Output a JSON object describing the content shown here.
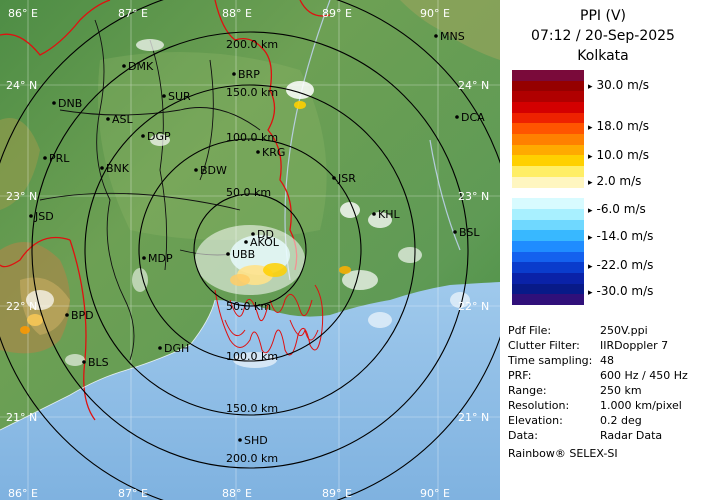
{
  "header": {
    "product": "PPI (V)",
    "datetime": "07:12 / 20-Sep-2025",
    "station": "Kolkata"
  },
  "legend": {
    "ticks": [
      "30.0 m/s",
      "18.0 m/s",
      "10.0 m/s",
      "2.0 m/s",
      "-6.0 m/s",
      "-14.0 m/s",
      "-22.0 m/s",
      "-30.0 m/s"
    ],
    "colors": [
      "#7a0a3a",
      "#950000",
      "#b00000",
      "#d40000",
      "#ee2200",
      "#ff5500",
      "#ff8000",
      "#ffaa00",
      "#ffd000",
      "#ffee66",
      "#fff6c0",
      "#ffffff",
      "#d8fbff",
      "#a8f0ff",
      "#6fd8ff",
      "#38b8ff",
      "#1f8cff",
      "#1461ee",
      "#0a3ccc",
      "#0a22a8",
      "#081a88",
      "#30107a"
    ]
  },
  "info": [
    {
      "label": "Pdf File:",
      "value": "250V.ppi"
    },
    {
      "label": "Clutter Filter:",
      "value": "IIRDoppler 7"
    },
    {
      "label": "Time sampling:",
      "value": "48"
    },
    {
      "label": "PRF:",
      "value": "600 Hz / 450 Hz"
    },
    {
      "label": "Range:",
      "value": "250 km"
    },
    {
      "label": "Resolution:",
      "value": "1.000 km/pixel"
    },
    {
      "label": "Elevation:",
      "value": "0.2 deg"
    },
    {
      "label": "Data:",
      "value": "Radar Data"
    }
  ],
  "brand": "Rainbow® SELEX-SI",
  "map": {
    "lon_labels": [
      "86° E",
      "87° E",
      "88° E",
      "89° E",
      "90° E"
    ],
    "lat_labels": [
      "24° N",
      "23° N",
      "22° N",
      "21° N"
    ],
    "range_rings": [
      "50.0 km",
      "100.0 km",
      "150.0 km",
      "200.0 km"
    ],
    "stations": [
      "MNS",
      "DMK",
      "BRP",
      "DNB",
      "SUR",
      "ASL",
      "DGP",
      "DCA",
      "PRL",
      "BNK",
      "BDW",
      "KRG",
      "JSR",
      "JSD",
      "KHL",
      "DD",
      "AKOL",
      "UBB",
      "BSL",
      "MDP",
      "BPD",
      "DGH",
      "BLS",
      "SHD"
    ]
  }
}
